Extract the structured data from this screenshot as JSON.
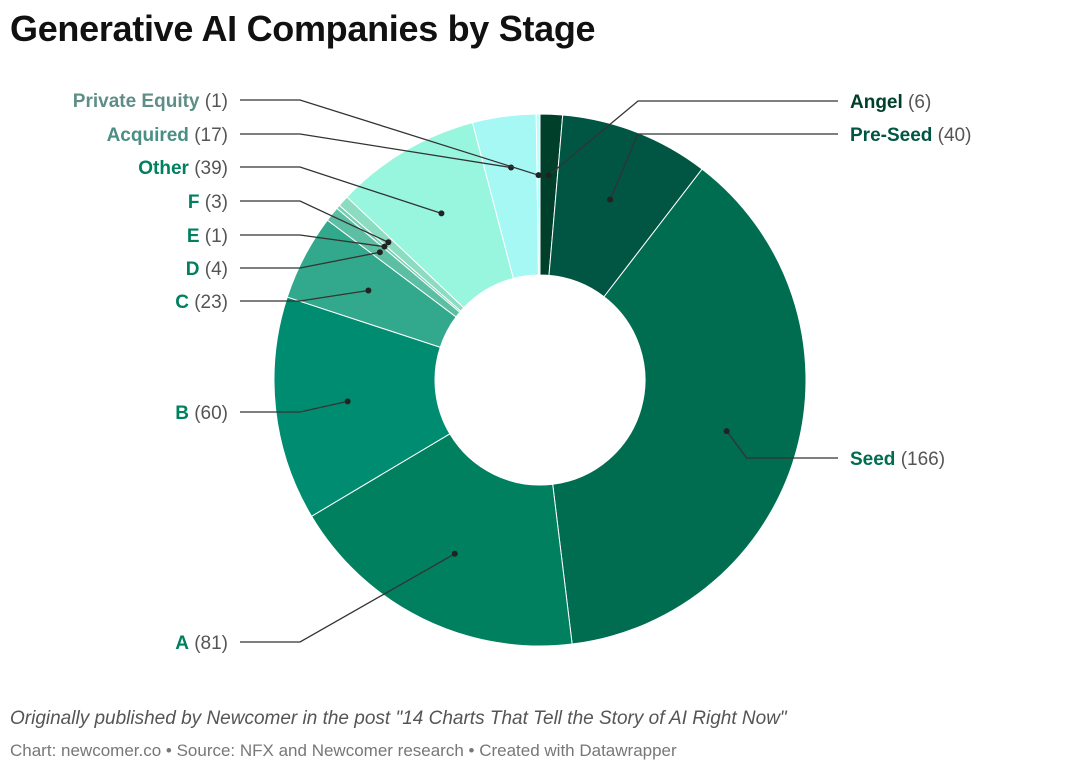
{
  "chart_data": {
    "type": "pie",
    "variant": "donut",
    "title": "Generative AI Companies by Stage",
    "slices": [
      {
        "label": "Angel",
        "value": 6,
        "color": "#00402A"
      },
      {
        "label": "Pre-Seed",
        "value": 40,
        "color": "#005642"
      },
      {
        "label": "Seed",
        "value": 166,
        "color": "#006D50"
      },
      {
        "label": "A",
        "value": 81,
        "color": "#00805F"
      },
      {
        "label": "B",
        "value": 60,
        "color": "#008C70"
      },
      {
        "label": "C",
        "value": 23,
        "color": "#32A98C"
      },
      {
        "label": "D",
        "value": 4,
        "color": "#5CBFA3"
      },
      {
        "label": "E",
        "value": 1,
        "color": "#74CFB3"
      },
      {
        "label": "F",
        "value": 3,
        "color": "#8CDCC1"
      },
      {
        "label": "Other",
        "value": 39,
        "color": "#98F6DE"
      },
      {
        "label": "Acquired",
        "value": 17,
        "color": "#A6F8F4"
      },
      {
        "label": "Private Equity",
        "value": 1,
        "color": "#B6FFFF"
      }
    ],
    "label_colors": {
      "Angel": "#00402A",
      "Pre-Seed": "#005642",
      "Seed": "#006D50",
      "A": "#00805F",
      "B": "#00805F",
      "C": "#00805F",
      "D": "#00805F",
      "E": "#00805F",
      "F": "#00805F",
      "Other": "#00805F",
      "Acquired": "#4A8F84",
      "Private Equity": "#5F8E88"
    }
  },
  "footer": {
    "note": "Originally published by Newcomer in the post \"14 Charts That Tell the Story of AI Right Now\"",
    "credits": "Chart: newcomer.co • Source: NFX and Newcomer research • Created with Datawrapper"
  }
}
